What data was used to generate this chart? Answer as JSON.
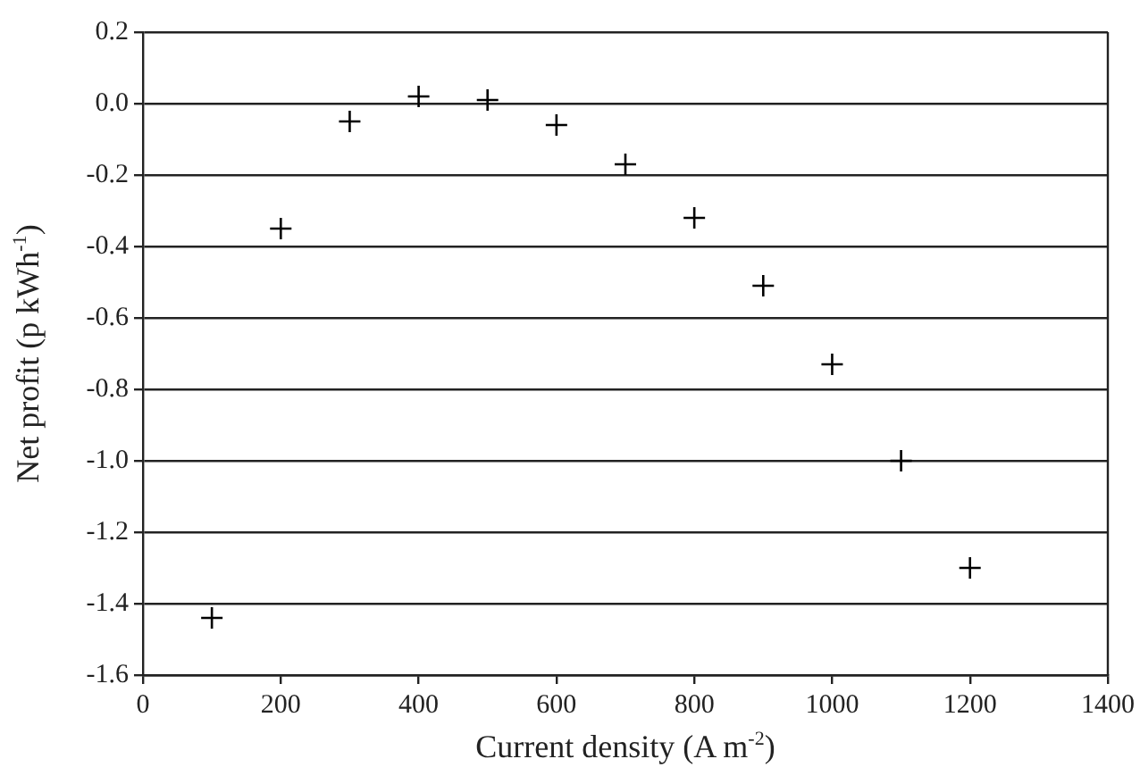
{
  "chart_data": {
    "type": "scatter",
    "xlabel": "Current density (A m$^{-2}$)",
    "ylabel": "Net profit (p kWh$^{-1}$)",
    "x": [
      100,
      200,
      300,
      400,
      500,
      600,
      700,
      800,
      900,
      1000,
      1100,
      1200
    ],
    "values": [
      -1.44,
      -0.35,
      -0.05,
      0.02,
      0.01,
      -0.06,
      -0.17,
      -0.32,
      -0.51,
      -0.73,
      -1.0,
      -1.3
    ],
    "color": "#000000",
    "marker": "cross",
    "xlim": [
      0,
      1400
    ],
    "xticks": [
      0,
      200,
      400,
      600,
      800,
      1000,
      1200,
      1400
    ],
    "ylim": [
      -1.6,
      0.2
    ],
    "yticks": [
      {
        "value": -1.6,
        "label": "-1.6"
      },
      {
        "value": -1.4,
        "label": "-1.4"
      },
      {
        "value": -1.2,
        "label": "-1.2"
      },
      {
        "value": -1.0,
        "label": "-1.0"
      },
      {
        "value": -0.8,
        "label": "-0.8"
      },
      {
        "value": -0.6,
        "label": "-0.6"
      },
      {
        "value": -0.4,
        "label": "-0.4"
      },
      {
        "value": -0.2,
        "label": "-0.2"
      },
      {
        "value": 0,
        "label": "0.0"
      },
      {
        "value": 0.2,
        "label": "0.2"
      }
    ],
    "grid": "y",
    "legend": false
  }
}
